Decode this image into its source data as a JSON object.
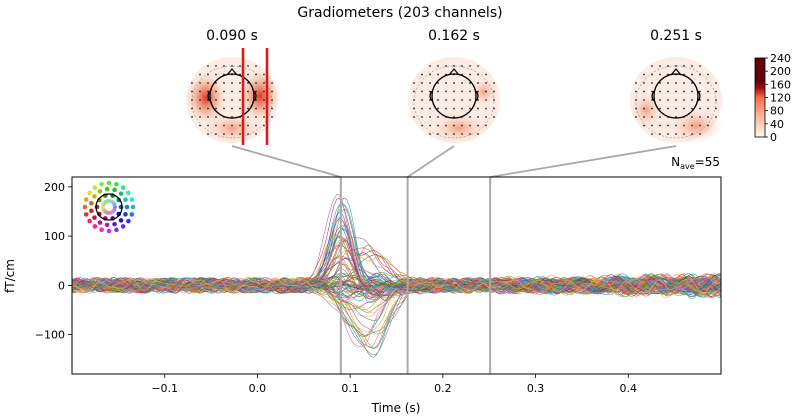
{
  "chart_data": {
    "type": "line",
    "title": "Gradiometers (203 channels)",
    "xlabel": "Time (s)",
    "ylabel": "fT/cm",
    "xlim": [
      -0.2,
      0.5
    ],
    "ylim": [
      -180,
      220
    ],
    "xticks": [
      -0.1,
      0.0,
      0.1,
      0.2,
      0.3,
      0.4
    ],
    "xtick_labels": [
      "−0.1",
      "0.0",
      "0.1",
      "0.2",
      "0.3",
      "0.4"
    ],
    "yticks": [
      -100,
      0,
      100,
      200
    ],
    "ytick_labels": [
      "−100",
      "0",
      "100",
      "200"
    ],
    "n_channels": 203,
    "grid": false,
    "nave": {
      "label": "N",
      "sub": "ave",
      "value": "=55"
    },
    "topomaps": [
      {
        "time": 0.09,
        "label": "0.090 s"
      },
      {
        "time": 0.162,
        "label": "0.162 s"
      },
      {
        "time": 0.251,
        "label": "0.251 s"
      }
    ],
    "colorbar": {
      "colormap": "Reds",
      "min": 0,
      "max": 240,
      "ticks": [
        240,
        200,
        160,
        120,
        80,
        40,
        0
      ],
      "tick_labels": [
        "240",
        "200",
        "160",
        "120",
        "80",
        "40",
        "0"
      ]
    },
    "series_summary": {
      "peak_time": 0.09,
      "peak_max": 200,
      "secondary_time": 0.12,
      "secondary_min": -160,
      "baseline_amplitude": 15
    },
    "colors": {
      "marker_line": "#aaaaaa",
      "highlight": "#ee1111",
      "axes": "#000000"
    }
  }
}
